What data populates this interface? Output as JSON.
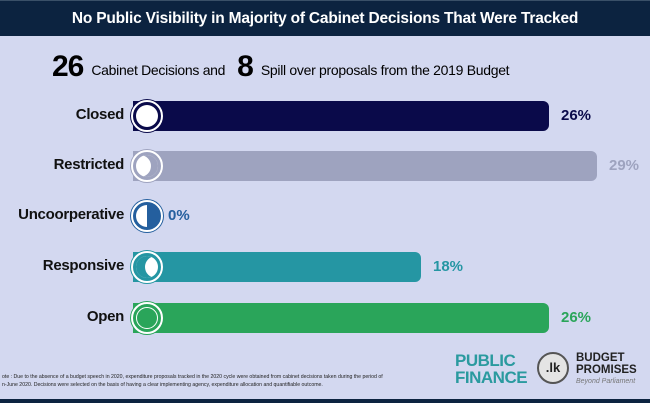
{
  "title": "No Public Visibility in Majority of Cabinet Decisions That Were Tracked",
  "subtitle": {
    "count1": "26",
    "text1": "Cabinet Decisions and",
    "count2": "8",
    "text2": "Spill over proposals from the 2019 Budget"
  },
  "chart_data": {
    "type": "bar",
    "orientation": "horizontal",
    "categories": [
      "Closed",
      "Restricted",
      "Uncoorperative",
      "Responsive",
      "Open"
    ],
    "values": [
      26,
      29,
      0,
      18,
      26
    ],
    "labels": [
      "26%",
      "29%",
      "0%",
      "18%",
      "26%"
    ],
    "colors": [
      "#0a0a4a",
      "#9ea3bf",
      "#245f9e",
      "#2596a3",
      "#2aa55a"
    ],
    "title": "No Public Visibility in Majority of Cabinet Decisions That Were Tracked"
  },
  "note": {
    "line1": "ote : Due to the absence of a budget speech in 2020, expenditure proposals tracked in the 2020 cycle  were obtained from cabinet decisions taken during the period of",
    "line2": "n-June 2020. Decisions were selected on the basis of having a clear implementing agency, expenditure allocation and quantifiable outcome."
  },
  "logos": {
    "pf1": "PUBLIC",
    "pf2": "FINANCE",
    "lk": ".lk",
    "bp1": "BUDGET",
    "bp2": "PROMISES",
    "bp3": "Beyond Parliament"
  }
}
